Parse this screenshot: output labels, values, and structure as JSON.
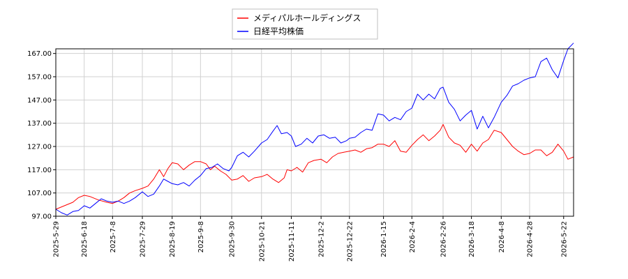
{
  "chart_data": {
    "type": "line",
    "title": "",
    "xlabel": "",
    "ylabel": "",
    "x_range": [
      "2025-05-29",
      "2026-05-29"
    ],
    "ylim": [
      97.0,
      169.0
    ],
    "yticks": [
      "97.00",
      "107.00",
      "117.00",
      "127.00",
      "137.00",
      "147.00",
      "157.00",
      "167.00"
    ],
    "xticks": [
      "2025-5-29",
      "2025-6-18",
      "2025-7-8",
      "2025-7-29",
      "2025-8-19",
      "2025-9-8",
      "2025-9-30",
      "2025-10-21",
      "2025-11-11",
      "2025-12-2",
      "2025-12-22",
      "2026-1-15",
      "2026-2-4",
      "2026-2-26",
      "2026-3-18",
      "2026-4-8",
      "2026-4-28",
      "2026-5-22"
    ],
    "grid": true,
    "legend_position": "top-center",
    "series": [
      {
        "name": "メディパルホールディングス",
        "color": "#ff0000",
        "points": [
          [
            "2025-05-29",
            100.0
          ],
          [
            "2025-06-04",
            101.5
          ],
          [
            "2025-06-10",
            103.0
          ],
          [
            "2025-06-14",
            105.0
          ],
          [
            "2025-06-18",
            106.0
          ],
          [
            "2025-06-22",
            105.5
          ],
          [
            "2025-06-28",
            104.0
          ],
          [
            "2025-07-04",
            103.0
          ],
          [
            "2025-07-08",
            102.5
          ],
          [
            "2025-07-12",
            103.5
          ],
          [
            "2025-07-16",
            105.0
          ],
          [
            "2025-07-20",
            107.0
          ],
          [
            "2025-07-24",
            108.0
          ],
          [
            "2025-07-29",
            109.0
          ],
          [
            "2025-08-02",
            110.0
          ],
          [
            "2025-08-06",
            113.0
          ],
          [
            "2025-08-10",
            117.0
          ],
          [
            "2025-08-13",
            114.0
          ],
          [
            "2025-08-16",
            117.5
          ],
          [
            "2025-08-19",
            120.0
          ],
          [
            "2025-08-23",
            119.5
          ],
          [
            "2025-08-27",
            117.0
          ],
          [
            "2025-08-31",
            119.0
          ],
          [
            "2025-09-04",
            120.5
          ],
          [
            "2025-09-08",
            120.5
          ],
          [
            "2025-09-12",
            119.5
          ],
          [
            "2025-09-15",
            117.0
          ],
          [
            "2025-09-18",
            118.5
          ],
          [
            "2025-09-22",
            116.5
          ],
          [
            "2025-09-26",
            115.0
          ],
          [
            "2025-09-30",
            112.5
          ],
          [
            "2025-10-04",
            113.0
          ],
          [
            "2025-10-08",
            114.5
          ],
          [
            "2025-10-12",
            112.0
          ],
          [
            "2025-10-16",
            113.5
          ],
          [
            "2025-10-21",
            114.0
          ],
          [
            "2025-10-25",
            115.0
          ],
          [
            "2025-10-29",
            113.0
          ],
          [
            "2025-11-02",
            111.5
          ],
          [
            "2025-11-06",
            113.5
          ],
          [
            "2025-11-08",
            117.0
          ],
          [
            "2025-11-11",
            116.5
          ],
          [
            "2025-11-15",
            118.0
          ],
          [
            "2025-11-19",
            116.0
          ],
          [
            "2025-11-23",
            120.0
          ],
          [
            "2025-11-27",
            121.0
          ],
          [
            "2025-12-02",
            121.5
          ],
          [
            "2025-12-06",
            120.0
          ],
          [
            "2025-12-10",
            122.5
          ],
          [
            "2025-12-14",
            124.0
          ],
          [
            "2025-12-18",
            124.5
          ],
          [
            "2025-12-22",
            125.0
          ],
          [
            "2025-12-26",
            125.5
          ],
          [
            "2025-12-30",
            124.5
          ],
          [
            "2026-01-03",
            126.0
          ],
          [
            "2026-01-07",
            126.5
          ],
          [
            "2026-01-11",
            128.0
          ],
          [
            "2026-01-15",
            128.0
          ],
          [
            "2026-01-19",
            127.0
          ],
          [
            "2026-01-23",
            129.5
          ],
          [
            "2026-01-27",
            125.0
          ],
          [
            "2026-01-31",
            124.5
          ],
          [
            "2026-02-04",
            127.5
          ],
          [
            "2026-02-08",
            130.0
          ],
          [
            "2026-02-12",
            132.0
          ],
          [
            "2026-02-16",
            129.5
          ],
          [
            "2026-02-20",
            131.5
          ],
          [
            "2026-02-24",
            134.0
          ],
          [
            "2026-02-26",
            136.5
          ],
          [
            "2026-03-02",
            131.0
          ],
          [
            "2026-03-06",
            128.5
          ],
          [
            "2026-03-10",
            127.5
          ],
          [
            "2026-03-14",
            124.5
          ],
          [
            "2026-03-18",
            128.0
          ],
          [
            "2026-03-22",
            125.0
          ],
          [
            "2026-03-26",
            128.5
          ],
          [
            "2026-03-30",
            130.0
          ],
          [
            "2026-04-03",
            134.0
          ],
          [
            "2026-04-08",
            133.0
          ],
          [
            "2026-04-12",
            130.0
          ],
          [
            "2026-04-16",
            127.0
          ],
          [
            "2026-04-20",
            125.0
          ],
          [
            "2026-04-24",
            123.5
          ],
          [
            "2026-04-28",
            124.0
          ],
          [
            "2026-05-02",
            125.5
          ],
          [
            "2026-05-06",
            125.5
          ],
          [
            "2026-05-10",
            123.0
          ],
          [
            "2026-05-14",
            124.5
          ],
          [
            "2026-05-18",
            128.0
          ],
          [
            "2026-05-22",
            125.0
          ],
          [
            "2026-05-25",
            121.5
          ],
          [
            "2026-05-29",
            122.5
          ]
        ]
      },
      {
        "name": "日経平均株価",
        "color": "#0000ff",
        "points": [
          [
            "2025-05-29",
            100.0
          ],
          [
            "2025-06-02",
            98.5
          ],
          [
            "2025-06-06",
            97.5
          ],
          [
            "2025-06-10",
            99.0
          ],
          [
            "2025-06-14",
            99.5
          ],
          [
            "2025-06-18",
            101.5
          ],
          [
            "2025-06-22",
            100.5
          ],
          [
            "2025-06-26",
            102.5
          ],
          [
            "2025-06-30",
            104.5
          ],
          [
            "2025-07-04",
            103.5
          ],
          [
            "2025-07-08",
            103.0
          ],
          [
            "2025-07-12",
            103.5
          ],
          [
            "2025-07-16",
            102.5
          ],
          [
            "2025-07-20",
            103.5
          ],
          [
            "2025-07-24",
            105.0
          ],
          [
            "2025-07-29",
            107.5
          ],
          [
            "2025-08-02",
            105.5
          ],
          [
            "2025-08-06",
            106.5
          ],
          [
            "2025-08-10",
            110.0
          ],
          [
            "2025-08-13",
            113.0
          ],
          [
            "2025-08-16",
            112.0
          ],
          [
            "2025-08-19",
            111.0
          ],
          [
            "2025-08-23",
            110.5
          ],
          [
            "2025-08-27",
            111.5
          ],
          [
            "2025-08-31",
            110.0
          ],
          [
            "2025-09-04",
            112.5
          ],
          [
            "2025-09-08",
            114.5
          ],
          [
            "2025-09-12",
            117.5
          ],
          [
            "2025-09-16",
            118.0
          ],
          [
            "2025-09-20",
            119.5
          ],
          [
            "2025-09-24",
            117.5
          ],
          [
            "2025-09-28",
            116.5
          ],
          [
            "2025-09-30",
            118.0
          ],
          [
            "2025-10-04",
            123.0
          ],
          [
            "2025-10-08",
            124.5
          ],
          [
            "2025-10-12",
            122.5
          ],
          [
            "2025-10-16",
            125.0
          ],
          [
            "2025-10-21",
            128.5
          ],
          [
            "2025-10-25",
            130.0
          ],
          [
            "2025-10-29",
            133.5
          ],
          [
            "2025-11-01",
            136.0
          ],
          [
            "2025-11-04",
            132.5
          ],
          [
            "2025-11-08",
            133.0
          ],
          [
            "2025-11-11",
            131.5
          ],
          [
            "2025-11-14",
            127.0
          ],
          [
            "2025-11-18",
            128.0
          ],
          [
            "2025-11-22",
            130.5
          ],
          [
            "2025-11-26",
            128.5
          ],
          [
            "2025-11-30",
            131.5
          ],
          [
            "2025-12-04",
            132.0
          ],
          [
            "2025-12-08",
            130.5
          ],
          [
            "2025-12-12",
            131.0
          ],
          [
            "2025-12-16",
            128.5
          ],
          [
            "2025-12-20",
            129.5
          ],
          [
            "2025-12-22",
            130.5
          ],
          [
            "2025-12-26",
            131.0
          ],
          [
            "2025-12-30",
            133.0
          ],
          [
            "2026-01-03",
            134.5
          ],
          [
            "2026-01-07",
            134.0
          ],
          [
            "2026-01-11",
            141.0
          ],
          [
            "2026-01-15",
            140.5
          ],
          [
            "2026-01-19",
            138.0
          ],
          [
            "2026-01-23",
            139.5
          ],
          [
            "2026-01-27",
            138.5
          ],
          [
            "2026-01-31",
            142.0
          ],
          [
            "2026-02-04",
            143.5
          ],
          [
            "2026-02-08",
            149.5
          ],
          [
            "2026-02-12",
            147.0
          ],
          [
            "2026-02-16",
            149.5
          ],
          [
            "2026-02-20",
            147.5
          ],
          [
            "2026-02-24",
            152.0
          ],
          [
            "2026-02-26",
            152.5
          ],
          [
            "2026-03-02",
            146.0
          ],
          [
            "2026-03-06",
            143.0
          ],
          [
            "2026-03-10",
            138.0
          ],
          [
            "2026-03-14",
            140.5
          ],
          [
            "2026-03-18",
            142.5
          ],
          [
            "2026-03-22",
            134.5
          ],
          [
            "2026-03-26",
            140.0
          ],
          [
            "2026-03-30",
            135.0
          ],
          [
            "2026-04-03",
            139.5
          ],
          [
            "2026-04-08",
            146.0
          ],
          [
            "2026-04-12",
            149.0
          ],
          [
            "2026-04-16",
            153.0
          ],
          [
            "2026-04-20",
            154.0
          ],
          [
            "2026-04-24",
            155.5
          ],
          [
            "2026-04-28",
            156.5
          ],
          [
            "2026-05-02",
            157.0
          ],
          [
            "2026-05-06",
            163.5
          ],
          [
            "2026-05-10",
            165.0
          ],
          [
            "2026-05-14",
            160.0
          ],
          [
            "2026-05-18",
            156.5
          ],
          [
            "2026-05-22",
            164.0
          ],
          [
            "2026-05-25",
            169.0
          ],
          [
            "2026-05-29",
            171.5
          ]
        ]
      }
    ]
  }
}
